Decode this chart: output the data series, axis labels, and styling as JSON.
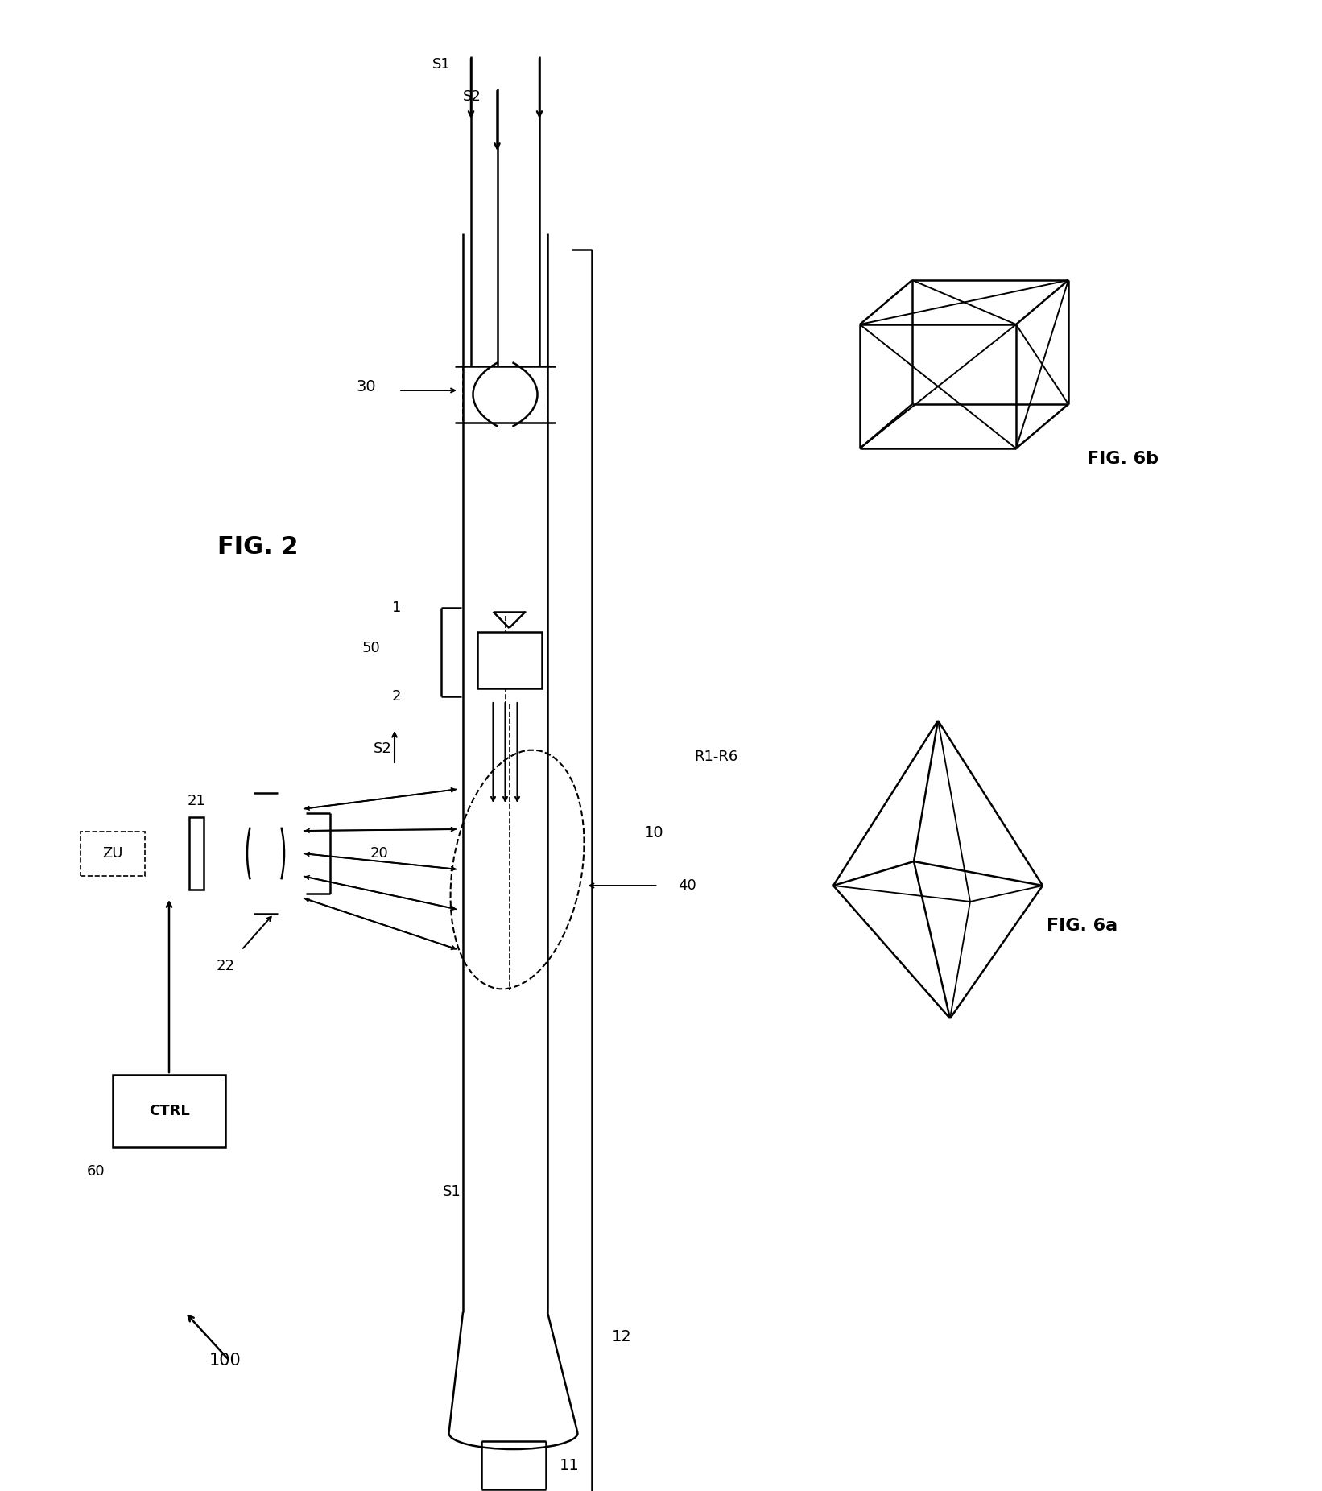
{
  "bg_color": "#ffffff",
  "line_color": "#000000",
  "figsize": [
    16.42,
    18.52
  ],
  "dpi": 100,
  "fig2_title": "FIG. 2",
  "fig6a_title": "FIG. 6a",
  "fig6b_title": "FIG. 6b"
}
